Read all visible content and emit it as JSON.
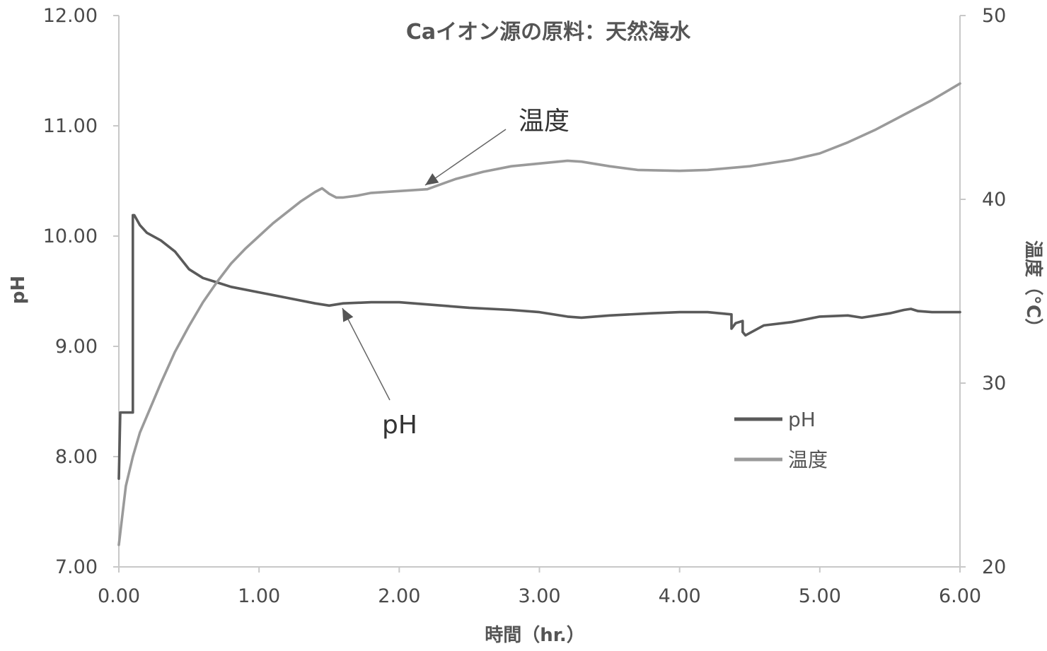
{
  "chart_data": {
    "type": "line",
    "title": "Caイオン源の原料：天然海水",
    "xlabel": "時間（hr.）",
    "ylabel": "pH",
    "y2label": "温度（°C）",
    "xlim": [
      0,
      6
    ],
    "ylim": [
      7,
      12
    ],
    "y2lim": [
      20,
      50
    ],
    "x_ticks": [
      "0.00",
      "1.00",
      "2.00",
      "3.00",
      "4.00",
      "5.00",
      "6.00"
    ],
    "y_ticks": [
      "7.00",
      "8.00",
      "9.00",
      "10.00",
      "11.00",
      "12.00"
    ],
    "y2_ticks": [
      "20",
      "30",
      "40",
      "50"
    ],
    "grid": false,
    "legend_position": "center-right",
    "series": [
      {
        "name": "pH",
        "axis": "left",
        "color": "#5a5a5a",
        "x": [
          0,
          0.01,
          0.01,
          0.1,
          0.1,
          0.11,
          0.15,
          0.2,
          0.3,
          0.4,
          0.45,
          0.5,
          0.6,
          0.7,
          0.8,
          1.0,
          1.2,
          1.4,
          1.5,
          1.6,
          1.8,
          2.0,
          2.2,
          2.5,
          2.8,
          3.0,
          3.2,
          3.3,
          3.5,
          3.8,
          4.0,
          4.2,
          4.37,
          4.37,
          4.4,
          4.45,
          4.45,
          4.47,
          4.6,
          4.8,
          5.0,
          5.2,
          5.3,
          5.4,
          5.5,
          5.6,
          5.65,
          5.7,
          5.8,
          6.0
        ],
        "y": [
          7.8,
          8.4,
          8.4,
          8.4,
          10.19,
          10.19,
          10.1,
          10.03,
          9.96,
          9.86,
          9.78,
          9.7,
          9.62,
          9.58,
          9.54,
          9.49,
          9.44,
          9.39,
          9.37,
          9.39,
          9.4,
          9.4,
          9.38,
          9.35,
          9.33,
          9.31,
          9.27,
          9.26,
          9.28,
          9.3,
          9.31,
          9.31,
          9.29,
          9.16,
          9.21,
          9.23,
          9.13,
          9.1,
          9.19,
          9.22,
          9.27,
          9.28,
          9.26,
          9.28,
          9.3,
          9.33,
          9.34,
          9.32,
          9.31,
          9.31
        ]
      },
      {
        "name": "温度",
        "axis": "right",
        "color": "#9a9a9a",
        "x": [
          0,
          0.05,
          0.1,
          0.15,
          0.2,
          0.3,
          0.4,
          0.5,
          0.6,
          0.7,
          0.8,
          0.9,
          1.0,
          1.1,
          1.2,
          1.3,
          1.4,
          1.45,
          1.5,
          1.55,
          1.6,
          1.7,
          1.8,
          2.0,
          2.2,
          2.4,
          2.6,
          2.8,
          3.0,
          3.2,
          3.3,
          3.5,
          3.7,
          4.0,
          4.2,
          4.5,
          4.8,
          5.0,
          5.2,
          5.4,
          5.6,
          5.8,
          6.0
        ],
        "y": [
          21.2,
          24.4,
          26.0,
          27.3,
          28.2,
          30.0,
          31.7,
          33.1,
          34.4,
          35.5,
          36.5,
          37.3,
          38.0,
          38.7,
          39.3,
          39.9,
          40.4,
          40.6,
          40.3,
          40.1,
          40.1,
          40.2,
          40.35,
          40.45,
          40.55,
          41.1,
          41.5,
          41.8,
          41.95,
          42.1,
          42.05,
          41.8,
          41.6,
          41.55,
          41.6,
          41.8,
          42.15,
          42.5,
          43.1,
          43.8,
          44.6,
          45.4,
          46.3
        ]
      }
    ],
    "annotations": [
      {
        "text": "温度",
        "series": "温度"
      },
      {
        "text": "pH",
        "series": "pH"
      }
    ]
  }
}
